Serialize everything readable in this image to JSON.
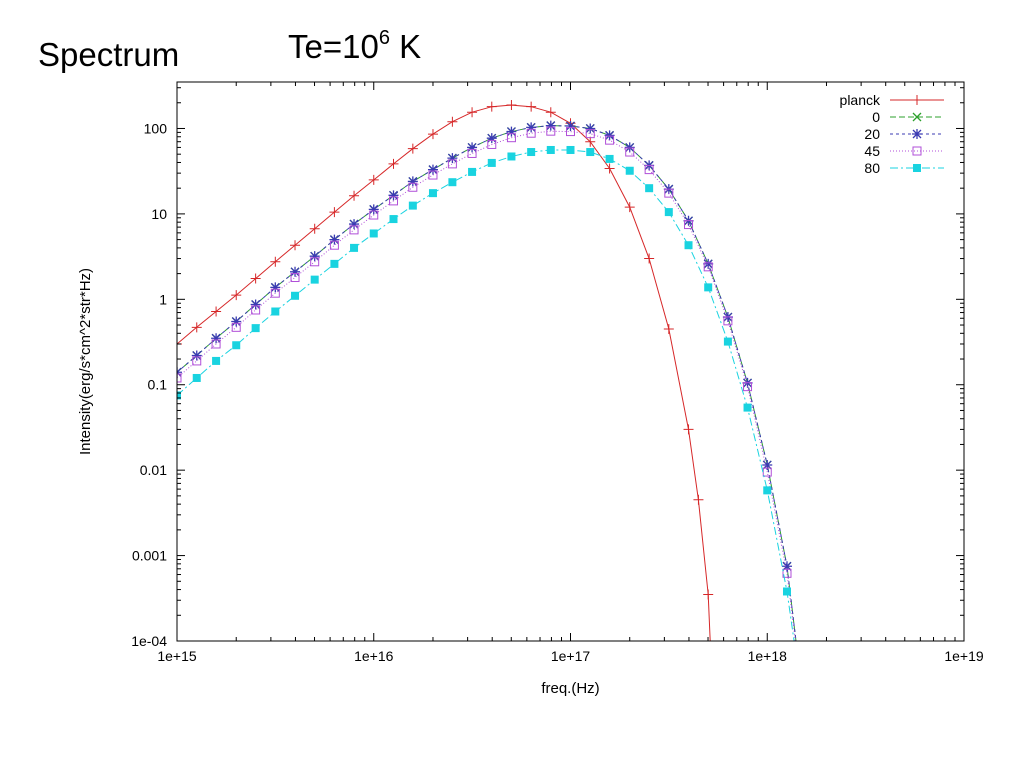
{
  "slide": {
    "title": "Spectrum",
    "subtitle_base": "Te=10",
    "subtitle_exp": "6",
    "subtitle_unit": "K"
  },
  "chart_data": {
    "type": "line",
    "xscale": "log",
    "yscale": "log",
    "xlim": [
      1000000000000000.0,
      1e+19
    ],
    "ylim": [
      0.0001,
      350
    ],
    "xlabel": "freq.(Hz)",
    "ylabel": "Intensity(erg/s*cm^2*str*Hz)",
    "xticks": [
      {
        "value": 1000000000000000.0,
        "label": "1e+15"
      },
      {
        "value": 1e+16,
        "label": "1e+16"
      },
      {
        "value": 1e+17,
        "label": "1e+17"
      },
      {
        "value": 1e+18,
        "label": "1e+18"
      },
      {
        "value": 1e+19,
        "label": "1e+19"
      }
    ],
    "yticks": [
      {
        "value": 0.0001,
        "label": "1e-04"
      },
      {
        "value": 0.001,
        "label": "0.001"
      },
      {
        "value": 0.01,
        "label": "0.01"
      },
      {
        "value": 0.1,
        "label": "0.1"
      },
      {
        "value": 1,
        "label": "1"
      },
      {
        "value": 10,
        "label": "10"
      },
      {
        "value": 100,
        "label": "100"
      }
    ],
    "grid": false,
    "legend_position": "top-right",
    "series": [
      {
        "name": "planck",
        "color": "#d62728",
        "marker": "plus",
        "dash": "",
        "points": [
          [
            1000000000000000.0,
            0.3
          ],
          [
            1260000000000000.0,
            0.47
          ],
          [
            1580000000000000.0,
            0.72
          ],
          [
            2000000000000000.0,
            1.12
          ],
          [
            2510000000000000.0,
            1.75
          ],
          [
            3160000000000000.0,
            2.75
          ],
          [
            3980000000000000.0,
            4.3
          ],
          [
            5010000000000000.0,
            6.7
          ],
          [
            6310000000000000.0,
            10.5
          ],
          [
            7940000000000000.0,
            16.3
          ],
          [
            1e+16,
            25
          ],
          [
            1.26e+16,
            38.5
          ],
          [
            1.58e+16,
            58
          ],
          [
            2e+16,
            86
          ],
          [
            2.51e+16,
            120
          ],
          [
            3.16e+16,
            155
          ],
          [
            3.98e+16,
            180
          ],
          [
            5.01e+16,
            188
          ],
          [
            6.31e+16,
            180
          ],
          [
            7.94e+16,
            155
          ],
          [
            1e+17,
            115
          ],
          [
            1.26e+17,
            70
          ],
          [
            1.58e+17,
            34
          ],
          [
            2e+17,
            12
          ],
          [
            2.51e+17,
            3.0
          ],
          [
            3.16e+17,
            0.45
          ],
          [
            3.98e+17,
            0.03
          ],
          [
            4.47e+17,
            0.0045
          ],
          [
            5.01e+17,
            0.00035
          ],
          [
            5.13e+17,
            0.0001
          ]
        ]
      },
      {
        "name": "0",
        "color": "#2ca02c",
        "marker": "x",
        "dash": "6,3",
        "points": [
          [
            1000000000000000.0,
            0.14
          ],
          [
            1260000000000000.0,
            0.22
          ],
          [
            1580000000000000.0,
            0.35
          ],
          [
            2000000000000000.0,
            0.55
          ],
          [
            2510000000000000.0,
            0.87
          ],
          [
            3160000000000000.0,
            1.38
          ],
          [
            3980000000000000.0,
            2.1
          ],
          [
            5010000000000000.0,
            3.2
          ],
          [
            6310000000000000.0,
            5.0
          ],
          [
            7940000000000000.0,
            7.6
          ],
          [
            1e+16,
            11.3
          ],
          [
            1.26e+16,
            16.5
          ],
          [
            1.58e+16,
            24
          ],
          [
            2e+16,
            33
          ],
          [
            2.51e+16,
            45
          ],
          [
            3.16e+16,
            60
          ],
          [
            3.98e+16,
            77
          ],
          [
            5.01e+16,
            92
          ],
          [
            6.31e+16,
            103
          ],
          [
            7.94e+16,
            108
          ],
          [
            1e+17,
            107
          ],
          [
            1.26e+17,
            100
          ],
          [
            1.58e+17,
            83
          ],
          [
            2e+17,
            60
          ],
          [
            2.51e+17,
            37
          ],
          [
            3.16e+17,
            19.5
          ],
          [
            3.98e+17,
            8.3
          ],
          [
            5.01e+17,
            2.6
          ],
          [
            6.31e+17,
            0.62
          ],
          [
            7.94e+17,
            0.105
          ],
          [
            1e+18,
            0.0115
          ],
          [
            1.26e+18,
            0.00075
          ],
          [
            1.4e+18,
            0.0001
          ]
        ]
      },
      {
        "name": "20",
        "color": "#3b3bb3",
        "marker": "star",
        "dash": "3,3",
        "points": [
          [
            1000000000000000.0,
            0.14
          ],
          [
            1260000000000000.0,
            0.22
          ],
          [
            1580000000000000.0,
            0.35
          ],
          [
            2000000000000000.0,
            0.55
          ],
          [
            2510000000000000.0,
            0.87
          ],
          [
            3160000000000000.0,
            1.38
          ],
          [
            3980000000000000.0,
            2.1
          ],
          [
            5010000000000000.0,
            3.2
          ],
          [
            6310000000000000.0,
            5.0
          ],
          [
            7940000000000000.0,
            7.6
          ],
          [
            1e+16,
            11.3
          ],
          [
            1.26e+16,
            16.5
          ],
          [
            1.58e+16,
            24
          ],
          [
            2e+16,
            33
          ],
          [
            2.51e+16,
            45
          ],
          [
            3.16e+16,
            60
          ],
          [
            3.98e+16,
            77
          ],
          [
            5.01e+16,
            92
          ],
          [
            6.31e+16,
            103
          ],
          [
            7.94e+16,
            108
          ],
          [
            1e+17,
            107
          ],
          [
            1.26e+17,
            100
          ],
          [
            1.58e+17,
            83
          ],
          [
            2e+17,
            60
          ],
          [
            2.51e+17,
            37
          ],
          [
            3.16e+17,
            19.5
          ],
          [
            3.98e+17,
            8.3
          ],
          [
            5.01e+17,
            2.6
          ],
          [
            6.31e+17,
            0.62
          ],
          [
            7.94e+17,
            0.105
          ],
          [
            1e+18,
            0.0115
          ],
          [
            1.26e+18,
            0.00075
          ],
          [
            1.4e+18,
            0.0001
          ]
        ]
      },
      {
        "name": "45",
        "color": "#b04fd8",
        "marker": "square-open",
        "dash": "1,2",
        "points": [
          [
            1000000000000000.0,
            0.12
          ],
          [
            1260000000000000.0,
            0.19
          ],
          [
            1580000000000000.0,
            0.3
          ],
          [
            2000000000000000.0,
            0.47
          ],
          [
            2510000000000000.0,
            0.75
          ],
          [
            3160000000000000.0,
            1.18
          ],
          [
            3980000000000000.0,
            1.8
          ],
          [
            5010000000000000.0,
            2.75
          ],
          [
            6310000000000000.0,
            4.3
          ],
          [
            7940000000000000.0,
            6.5
          ],
          [
            1e+16,
            9.7
          ],
          [
            1.26e+16,
            14.2
          ],
          [
            1.58e+16,
            20.5
          ],
          [
            2e+16,
            28.5
          ],
          [
            2.51e+16,
            38.5
          ],
          [
            3.16e+16,
            51
          ],
          [
            3.98e+16,
            65
          ],
          [
            5.01e+16,
            78
          ],
          [
            6.31e+16,
            88
          ],
          [
            7.94e+16,
            93
          ],
          [
            1e+17,
            92
          ],
          [
            1.26e+17,
            87
          ],
          [
            1.58e+17,
            73
          ],
          [
            2e+17,
            53
          ],
          [
            2.51e+17,
            33
          ],
          [
            3.16e+17,
            17.5
          ],
          [
            3.98e+17,
            7.5
          ],
          [
            5.01e+17,
            2.4
          ],
          [
            6.31e+17,
            0.56
          ],
          [
            7.94e+17,
            0.095
          ],
          [
            1e+18,
            0.0095
          ],
          [
            1.26e+18,
            0.00062
          ],
          [
            1.39e+18,
            0.0001
          ]
        ]
      },
      {
        "name": "80",
        "color": "#19d3e0",
        "marker": "square-filled",
        "dash": "8,3,2,3",
        "points": [
          [
            1000000000000000.0,
            0.075
          ],
          [
            1260000000000000.0,
            0.12
          ],
          [
            1580000000000000.0,
            0.19
          ],
          [
            2000000000000000.0,
            0.29
          ],
          [
            2510000000000000.0,
            0.46
          ],
          [
            3160000000000000.0,
            0.72
          ],
          [
            3980000000000000.0,
            1.1
          ],
          [
            5010000000000000.0,
            1.7
          ],
          [
            6310000000000000.0,
            2.6
          ],
          [
            7940000000000000.0,
            4.0
          ],
          [
            1e+16,
            5.9
          ],
          [
            1.26e+16,
            8.7
          ],
          [
            1.58e+16,
            12.5
          ],
          [
            2e+16,
            17.5
          ],
          [
            2.51e+16,
            23.5
          ],
          [
            3.16e+16,
            31
          ],
          [
            3.98e+16,
            39.5
          ],
          [
            5.01e+16,
            47
          ],
          [
            6.31e+16,
            53
          ],
          [
            7.94e+16,
            56
          ],
          [
            1e+17,
            56
          ],
          [
            1.26e+17,
            53
          ],
          [
            1.58e+17,
            44
          ],
          [
            2e+17,
            32
          ],
          [
            2.51e+17,
            20
          ],
          [
            3.16e+17,
            10.5
          ],
          [
            3.98e+17,
            4.3
          ],
          [
            5.01e+17,
            1.38
          ],
          [
            6.31e+17,
            0.32
          ],
          [
            7.94e+17,
            0.054
          ],
          [
            1e+18,
            0.0058
          ],
          [
            1.26e+18,
            0.00038
          ],
          [
            1.37e+18,
            0.0001
          ]
        ]
      }
    ]
  }
}
